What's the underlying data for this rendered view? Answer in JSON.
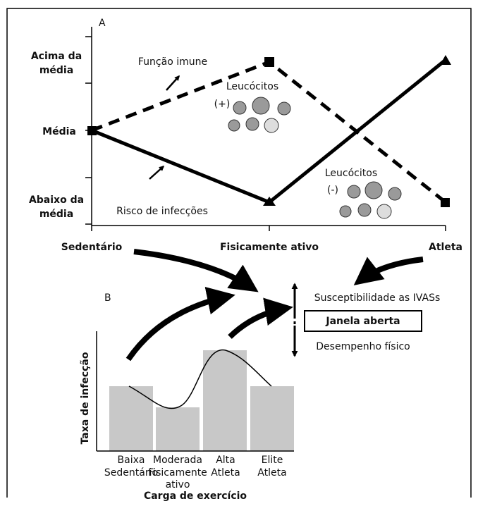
{
  "panel_a": {
    "label": "A",
    "y_labels": [
      [
        "Acima da",
        "média"
      ],
      [
        "Média"
      ],
      [
        "Abaixo da",
        "média"
      ]
    ],
    "x_labels": [
      "Sedentário",
      "Fisicamente ativo",
      "Atleta"
    ],
    "immune_label": "Função imune",
    "risk_label": "Risco de infecções",
    "leukocytes_up": {
      "title": "Leucócitos",
      "sign": "(+)"
    },
    "leukocytes_down": {
      "title": "Leucócitos",
      "sign": "(-)"
    }
  },
  "window": {
    "up": "Susceptibilidade as IVASs",
    "box": "Janela aberta",
    "down": "Desempenho físico"
  },
  "panel_b": {
    "label": "B",
    "y_label": "Taxa de infecção",
    "x_label": "Carga de exercício",
    "categories": [
      [
        "Baixa",
        "Sedentário"
      ],
      [
        "Moderada",
        "Fisicamente",
        "ativo"
      ],
      [
        "Alta",
        "Atleta"
      ],
      [
        "Elite",
        "Atleta"
      ]
    ]
  }
}
